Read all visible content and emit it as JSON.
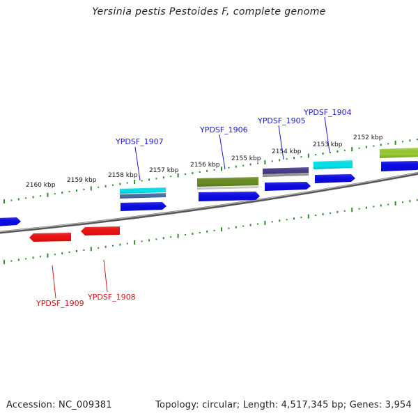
{
  "title": "Yersinia pestis Pestoides F, complete genome",
  "footer": {
    "accession": "Accession: NC_009381",
    "summary": "Topology: circular; Length: 4,517,345 bp; Genes: 3,954"
  },
  "colors": {
    "backbone": "#7a7a7a",
    "tick": "#2e8b2e",
    "forward_label": "#1a1acc",
    "reverse_label": "#cc1a1a",
    "cds": "#0a0ae6",
    "reverse_cds": "#ee1111",
    "cyan_feature": "#00e5ee",
    "olive_feature": "#6b8e23",
    "purple_feature": "#483d8b",
    "lime_feature": "#9acd32"
  },
  "scale_labels": [
    "2160 kbp",
    "2159 kbp",
    "2158 kbp",
    "2157 kbp",
    "2156 kbp",
    "2155 kbp",
    "2154 kbp",
    "2153 kbp",
    "2152 kbp"
  ],
  "forward_genes": [
    "YPDSF_1907",
    "YPDSF_1906",
    "YPDSF_1905",
    "YPDSF_1904"
  ],
  "reverse_genes": [
    "YPDSF_1909",
    "YPDSF_1908"
  ]
}
